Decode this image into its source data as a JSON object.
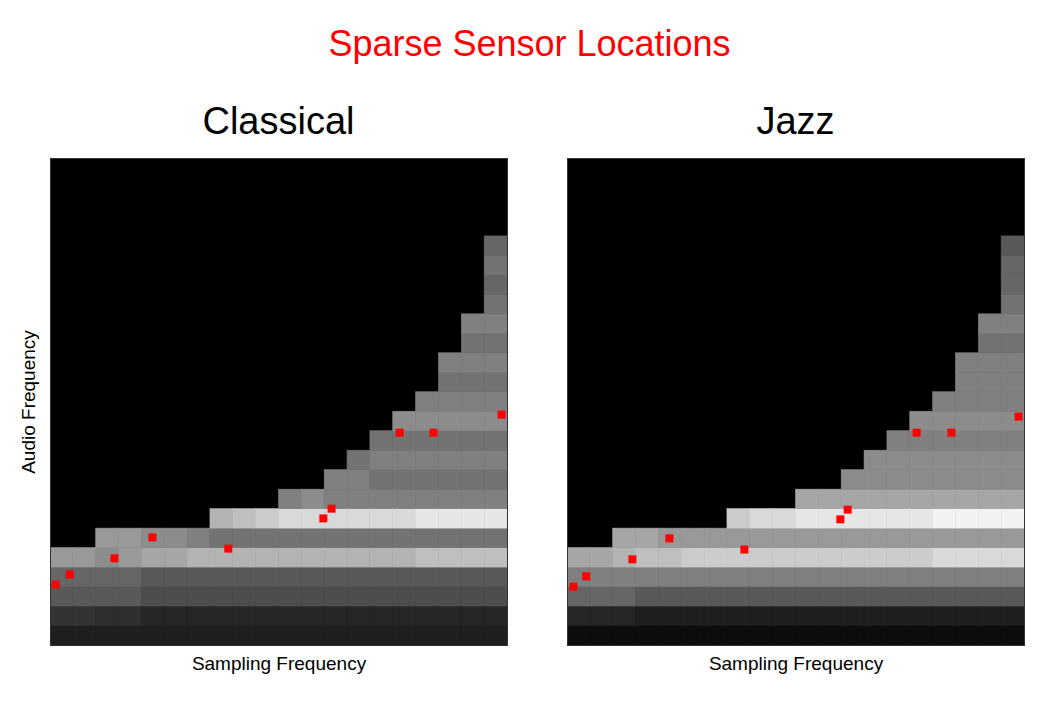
{
  "title": "Sparse Sensor Locations",
  "chart_data": [
    {
      "type": "heatmap",
      "title": "Classical",
      "x_label": "Sampling Frequency",
      "y_label": "Audio Frequency",
      "xlim": [
        0,
        1
      ],
      "ylim": [
        0,
        1
      ],
      "tick_labels": false,
      "value_range": [
        0,
        1
      ],
      "x_bins": [
        0,
        0.05,
        0.1,
        0.15,
        0.2,
        0.25,
        0.3,
        0.35,
        0.4,
        0.45,
        0.5,
        0.55,
        0.6,
        0.65,
        0.7,
        0.75,
        0.8,
        0.85,
        0.9,
        0.95,
        1
      ],
      "y_bins": [
        0,
        0.04,
        0.08,
        0.12,
        0.16,
        0.2,
        0.24,
        0.28,
        0.32,
        0.36,
        0.4,
        0.44,
        0.48,
        0.52,
        0.56,
        0.6,
        0.64,
        0.68,
        0.72,
        0.76,
        0.8,
        0.84,
        0.88,
        0.92,
        0.96,
        1
      ],
      "cells": [
        [
          0.12,
          0.2,
          0.35,
          0.4,
          0.6
        ],
        [
          0.12,
          0.2,
          0.35,
          0.4,
          0.6
        ],
        [
          0.12,
          0.18,
          0.35,
          0.4,
          0.55,
          0.6
        ],
        [
          0.12,
          0.18,
          0.35,
          0.4,
          0.6,
          0.6
        ],
        [
          0.12,
          0.15,
          0.3,
          0.35,
          0.65,
          0.55
        ],
        [
          0.12,
          0.15,
          0.3,
          0.35,
          0.65,
          0.55
        ],
        [
          0.12,
          0.15,
          0.3,
          0.35,
          0.7,
          0.5
        ],
        [
          0.12,
          0.15,
          0.3,
          0.35,
          0.7,
          0.45,
          0.7
        ],
        [
          0.12,
          0.15,
          0.3,
          0.35,
          0.7,
          0.45,
          0.75
        ],
        [
          0.12,
          0.15,
          0.3,
          0.35,
          0.7,
          0.45,
          0.8
        ],
        [
          0.12,
          0.15,
          0.3,
          0.35,
          0.7,
          0.45,
          0.85,
          0.5
        ],
        [
          0.12,
          0.15,
          0.3,
          0.35,
          0.7,
          0.45,
          0.85,
          0.55
        ],
        [
          0.12,
          0.15,
          0.3,
          0.35,
          0.7,
          0.45,
          0.85,
          0.5,
          0.5
        ],
        [
          0.12,
          0.15,
          0.3,
          0.35,
          0.7,
          0.45,
          0.85,
          0.5,
          0.5,
          0.45
        ],
        [
          0.12,
          0.15,
          0.3,
          0.35,
          0.7,
          0.45,
          0.85,
          0.5,
          0.45,
          0.5,
          0.45
        ],
        [
          0.12,
          0.15,
          0.3,
          0.35,
          0.7,
          0.45,
          0.85,
          0.5,
          0.45,
          0.5,
          0.45,
          0.55
        ],
        [
          0.12,
          0.15,
          0.3,
          0.35,
          0.75,
          0.45,
          0.9,
          0.5,
          0.45,
          0.5,
          0.45,
          0.55,
          0.5
        ],
        [
          0.12,
          0.15,
          0.3,
          0.35,
          0.75,
          0.45,
          0.9,
          0.5,
          0.45,
          0.5,
          0.45,
          0.55,
          0.5,
          0.45,
          0.5
        ],
        [
          0.12,
          0.15,
          0.3,
          0.35,
          0.75,
          0.45,
          0.9,
          0.5,
          0.45,
          0.5,
          0.45,
          0.55,
          0.5,
          0.45,
          0.5,
          0.45,
          0.5
        ],
        [
          0.12,
          0.15,
          0.3,
          0.35,
          0.75,
          0.45,
          0.9,
          0.5,
          0.45,
          0.5,
          0.45,
          0.55,
          0.5,
          0.45,
          0.5,
          0.45,
          0.5,
          0.45,
          0.4,
          0.45,
          0.4
        ]
      ],
      "sensors": {
        "x": [
          0.011,
          0.042,
          0.14,
          0.223,
          0.389,
          0.597,
          0.615,
          0.764,
          0.838,
          0.987
        ],
        "y": [
          0.125,
          0.146,
          0.179,
          0.222,
          0.199,
          0.261,
          0.281,
          0.437,
          0.437,
          0.474
        ],
        "color": "#ff0000",
        "marker": "square"
      }
    },
    {
      "type": "heatmap",
      "title": "Jazz",
      "x_label": "Sampling Frequency",
      "xlim": [
        0,
        1
      ],
      "ylim": [
        0,
        1
      ],
      "tick_labels": false,
      "value_range": [
        0,
        1
      ],
      "x_bins": [
        0,
        0.05,
        0.1,
        0.15,
        0.2,
        0.25,
        0.3,
        0.35,
        0.4,
        0.45,
        0.5,
        0.55,
        0.6,
        0.65,
        0.7,
        0.75,
        0.8,
        0.85,
        0.9,
        0.95,
        1
      ],
      "y_bins": [
        0,
        0.04,
        0.08,
        0.12,
        0.16,
        0.2,
        0.24,
        0.28,
        0.32,
        0.36,
        0.4,
        0.44,
        0.48,
        0.52,
        0.56,
        0.6,
        0.64,
        0.68,
        0.72,
        0.76,
        0.8,
        0.84,
        0.88,
        0.92,
        0.96,
        1
      ],
      "cells": [
        [
          0.05,
          0.15,
          0.4,
          0.5,
          0.65
        ],
        [
          0.05,
          0.15,
          0.4,
          0.5,
          0.65
        ],
        [
          0.05,
          0.15,
          0.4,
          0.5,
          0.7,
          0.65
        ],
        [
          0.05,
          0.12,
          0.35,
          0.5,
          0.75,
          0.65
        ],
        [
          0.05,
          0.12,
          0.35,
          0.5,
          0.75,
          0.6
        ],
        [
          0.05,
          0.12,
          0.35,
          0.5,
          0.8,
          0.6
        ],
        [
          0.05,
          0.12,
          0.35,
          0.5,
          0.8,
          0.6
        ],
        [
          0.05,
          0.12,
          0.35,
          0.5,
          0.8,
          0.6,
          0.8
        ],
        [
          0.05,
          0.12,
          0.35,
          0.5,
          0.8,
          0.6,
          0.85
        ],
        [
          0.05,
          0.12,
          0.35,
          0.5,
          0.8,
          0.6,
          0.85
        ],
        [
          0.05,
          0.12,
          0.35,
          0.5,
          0.8,
          0.6,
          0.9,
          0.65
        ],
        [
          0.05,
          0.12,
          0.35,
          0.5,
          0.8,
          0.6,
          0.9,
          0.65
        ],
        [
          0.05,
          0.12,
          0.35,
          0.5,
          0.8,
          0.6,
          0.9,
          0.65,
          0.55
        ],
        [
          0.05,
          0.12,
          0.35,
          0.5,
          0.8,
          0.6,
          0.9,
          0.65,
          0.55,
          0.55
        ],
        [
          0.05,
          0.12,
          0.35,
          0.5,
          0.8,
          0.6,
          0.9,
          0.65,
          0.55,
          0.55,
          0.5
        ],
        [
          0.05,
          0.12,
          0.35,
          0.5,
          0.8,
          0.6,
          0.9,
          0.65,
          0.55,
          0.55,
          0.5,
          0.55
        ],
        [
          0.05,
          0.12,
          0.35,
          0.5,
          0.85,
          0.6,
          0.95,
          0.65,
          0.55,
          0.55,
          0.5,
          0.55,
          0.5
        ],
        [
          0.05,
          0.12,
          0.35,
          0.5,
          0.85,
          0.6,
          0.95,
          0.65,
          0.55,
          0.55,
          0.5,
          0.55,
          0.5,
          0.5,
          0.5
        ],
        [
          0.05,
          0.12,
          0.35,
          0.5,
          0.85,
          0.6,
          0.95,
          0.65,
          0.55,
          0.55,
          0.5,
          0.55,
          0.5,
          0.5,
          0.5,
          0.45,
          0.5
        ],
        [
          0.05,
          0.12,
          0.35,
          0.5,
          0.85,
          0.6,
          0.95,
          0.65,
          0.55,
          0.55,
          0.5,
          0.55,
          0.5,
          0.5,
          0.5,
          0.45,
          0.5,
          0.45,
          0.4,
          0.4,
          0.35
        ]
      ],
      "sensors": {
        "x": [
          0.013,
          0.041,
          0.142,
          0.223,
          0.387,
          0.597,
          0.613,
          0.764,
          0.84,
          0.987
        ],
        "y": [
          0.121,
          0.142,
          0.177,
          0.22,
          0.197,
          0.259,
          0.279,
          0.437,
          0.437,
          0.47
        ],
        "color": "#ff0000",
        "marker": "square"
      }
    }
  ]
}
